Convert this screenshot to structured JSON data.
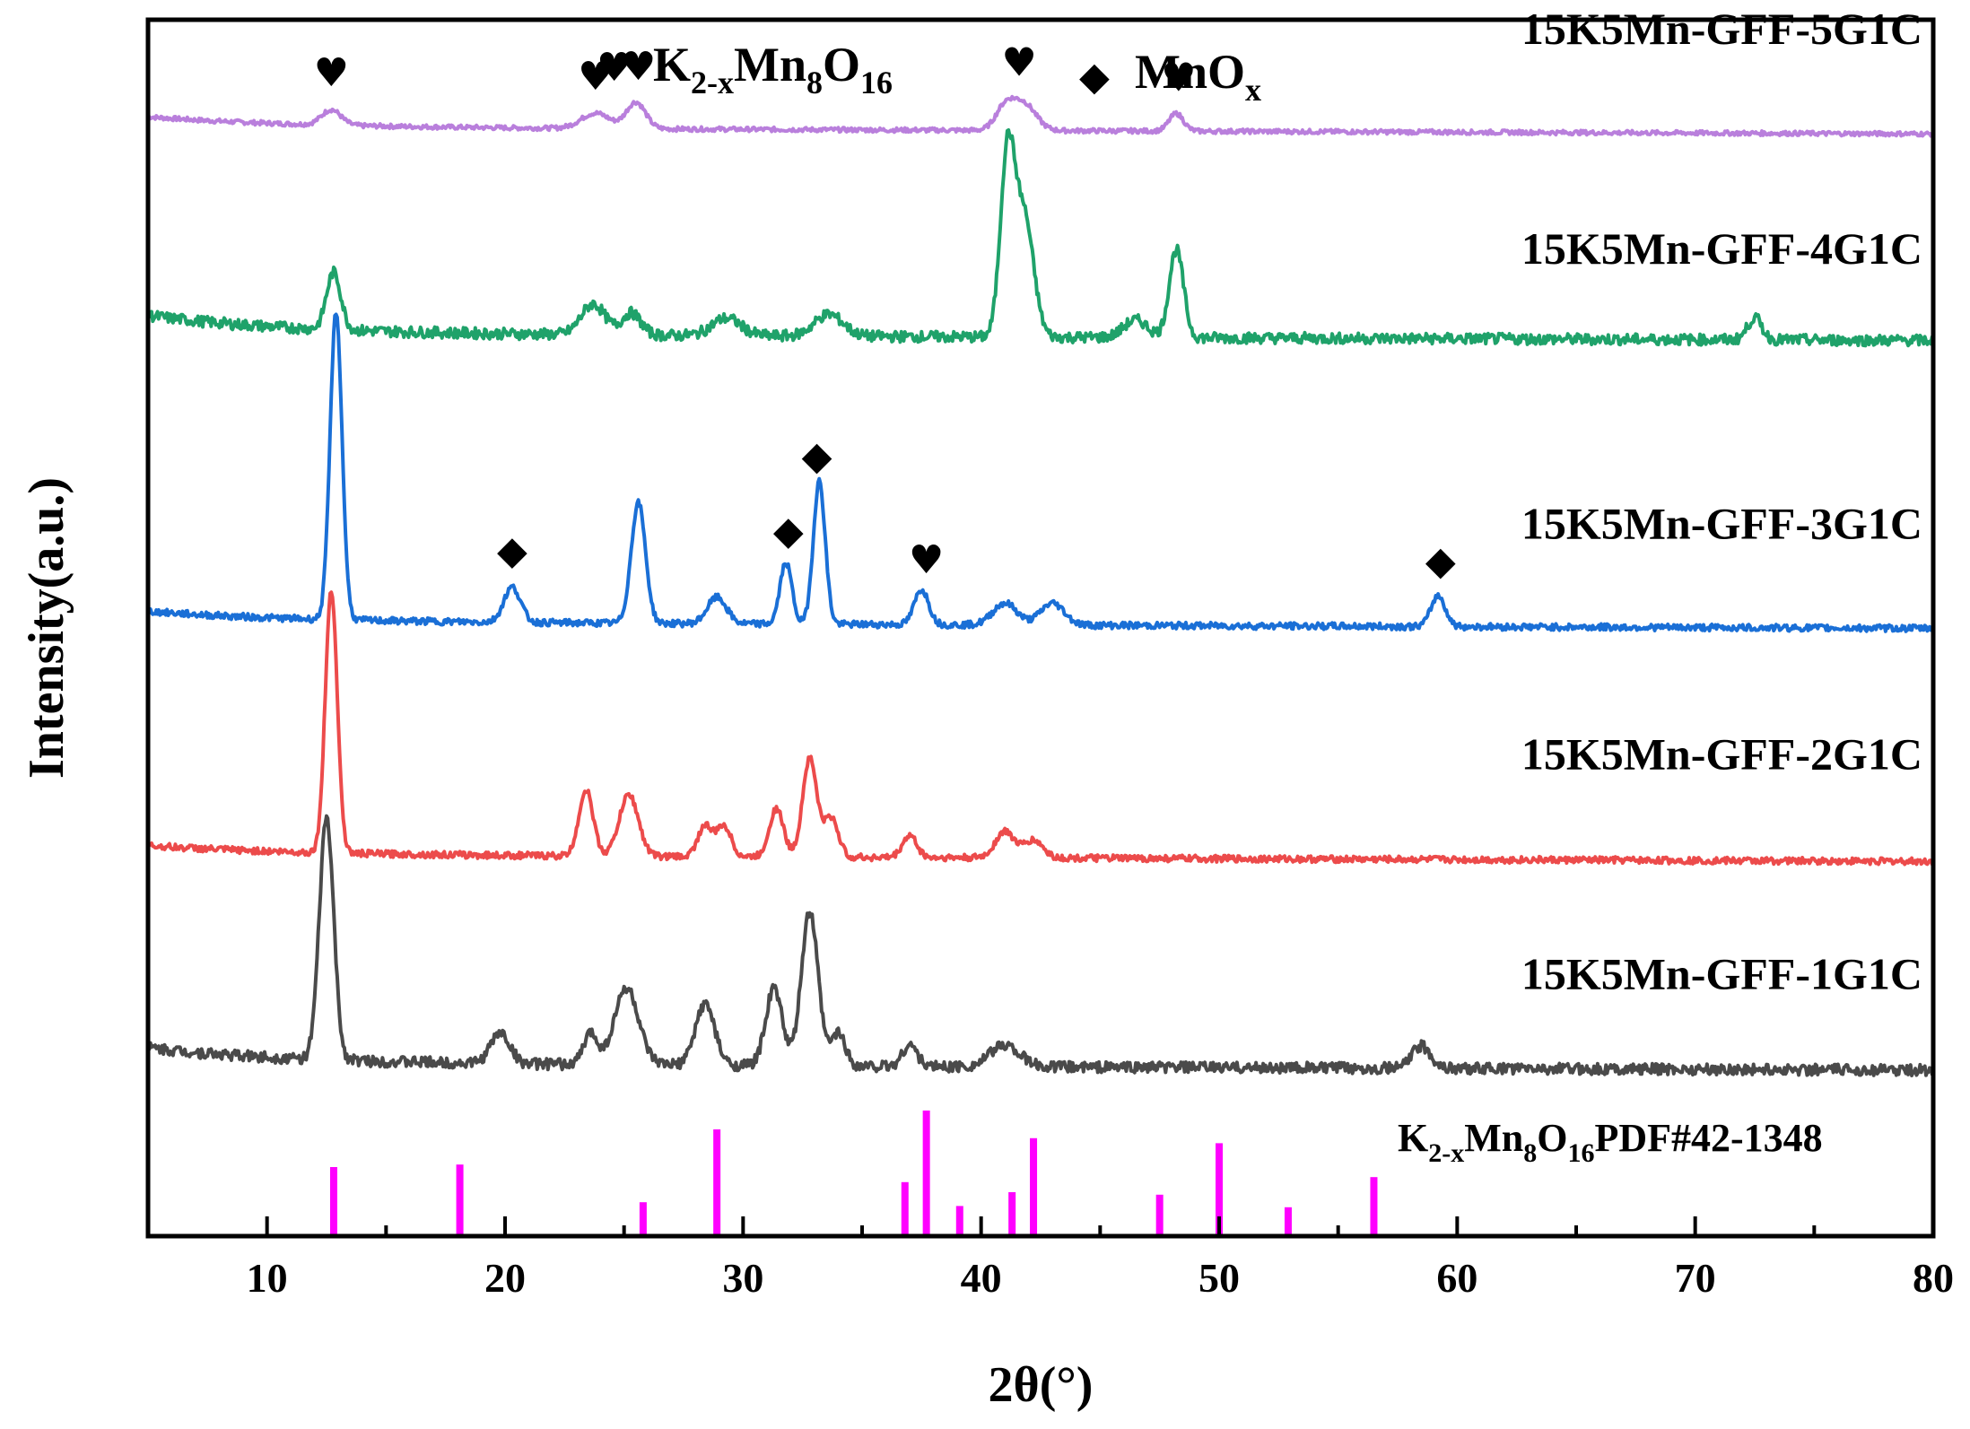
{
  "chart_data": {
    "type": "line",
    "xlabel": "2θ(°)",
    "ylabel": "Intensity(a.u.)",
    "xlim": [
      5,
      80
    ],
    "x_ticks": [
      10,
      20,
      30,
      40,
      50,
      60,
      70,
      80
    ],
    "x_minor_step": 5,
    "y_ticks_shown": false,
    "grid": false,
    "legend": {
      "placement": "top-center",
      "items": [
        {
          "symbol": "♥",
          "symbol_name": "heart-marker",
          "base": "K",
          "sub1": "2-x",
          "mid": "Mn",
          "sub2": "8",
          "tail": "O",
          "sub3": "16"
        },
        {
          "symbol": "◆",
          "symbol_name": "diamond-marker",
          "base": "MnO",
          "sub1": "x"
        }
      ]
    },
    "series": [
      {
        "name": "15K5Mn-GFF-5G1C",
        "color": "#b97fdc",
        "offset": 4.3,
        "baseline": 0.08,
        "noise": 0.02,
        "peaks": [
          [
            12.7,
            0.07,
            0.4
          ],
          [
            23.8,
            0.07,
            0.6
          ],
          [
            25.5,
            0.12,
            0.4
          ],
          [
            41.0,
            0.1,
            0.4
          ],
          [
            41.8,
            0.12,
            0.5
          ],
          [
            48.2,
            0.08,
            0.3
          ]
        ],
        "markers": [
          {
            "x": 12.7,
            "symbol": "♥"
          },
          {
            "x": 23.8,
            "symbol": "♥"
          },
          {
            "x": 25.6,
            "symbol": "♥"
          },
          {
            "x": 41.6,
            "symbol": "♥"
          },
          {
            "x": 48.3,
            "symbol": "♥"
          }
        ]
      },
      {
        "name": "15K5Mn-GFF-4G1C",
        "color": "#1fa26a",
        "offset": 3.3,
        "baseline": 0.14,
        "noise": 0.05,
        "peaks": [
          [
            12.8,
            0.26,
            0.3
          ],
          [
            23.7,
            0.14,
            0.5
          ],
          [
            25.3,
            0.1,
            0.4
          ],
          [
            29.3,
            0.08,
            0.6
          ],
          [
            33.6,
            0.1,
            0.6
          ],
          [
            41.1,
            0.8,
            0.3
          ],
          [
            41.8,
            0.55,
            0.4
          ],
          [
            46.5,
            0.08,
            0.5
          ],
          [
            48.2,
            0.4,
            0.3
          ],
          [
            72.5,
            0.1,
            0.3
          ]
        ],
        "markers": []
      },
      {
        "name": "15K5Mn-GFF-3G1C",
        "color": "#1a6fd6",
        "offset": 2.05,
        "baseline": 0.08,
        "noise": 0.03,
        "peaks": [
          [
            12.9,
            1.4,
            0.25
          ],
          [
            20.3,
            0.16,
            0.35
          ],
          [
            25.6,
            0.55,
            0.3
          ],
          [
            28.9,
            0.12,
            0.4
          ],
          [
            31.8,
            0.28,
            0.25
          ],
          [
            33.2,
            0.65,
            0.25
          ],
          [
            37.5,
            0.16,
            0.3
          ],
          [
            41.0,
            0.1,
            0.5
          ],
          [
            43.0,
            0.1,
            0.5
          ],
          [
            59.2,
            0.14,
            0.3
          ]
        ],
        "markers": [
          {
            "x": 20.3,
            "symbol": "◆"
          },
          {
            "x": 31.9,
            "symbol": "◆"
          },
          {
            "x": 33.1,
            "symbol": "◆"
          },
          {
            "x": 37.7,
            "symbol": "♥"
          },
          {
            "x": 59.3,
            "symbol": "◆"
          }
        ]
      },
      {
        "name": "15K5Mn-GFF-2G1C",
        "color": "#ec4b4b",
        "offset": 1.0,
        "baseline": 0.07,
        "noise": 0.03,
        "peaks": [
          [
            12.7,
            1.2,
            0.25
          ],
          [
            23.4,
            0.3,
            0.3
          ],
          [
            25.2,
            0.28,
            0.4
          ],
          [
            28.4,
            0.14,
            0.3
          ],
          [
            29.2,
            0.14,
            0.3
          ],
          [
            31.4,
            0.22,
            0.3
          ],
          [
            32.8,
            0.45,
            0.3
          ],
          [
            33.7,
            0.18,
            0.3
          ],
          [
            37.0,
            0.1,
            0.3
          ],
          [
            41.0,
            0.12,
            0.4
          ],
          [
            42.2,
            0.08,
            0.4
          ]
        ],
        "markers": []
      },
      {
        "name": "15K5Mn-GFF-1G1C",
        "color": "#4a4a4a",
        "offset": 0.0,
        "baseline": 0.12,
        "noise": 0.05,
        "peaks": [
          [
            12.5,
            1.1,
            0.3
          ],
          [
            19.8,
            0.14,
            0.4
          ],
          [
            23.6,
            0.14,
            0.3
          ],
          [
            25.1,
            0.35,
            0.5
          ],
          [
            28.4,
            0.28,
            0.4
          ],
          [
            31.3,
            0.35,
            0.35
          ],
          [
            32.8,
            0.7,
            0.35
          ],
          [
            34.0,
            0.15,
            0.3
          ],
          [
            37.0,
            0.1,
            0.3
          ],
          [
            41.0,
            0.1,
            0.6
          ],
          [
            58.5,
            0.1,
            0.4
          ]
        ],
        "markers": []
      }
    ],
    "reference": {
      "label_base": "K",
      "label_sub1": "2-x",
      "label_mid": "Mn",
      "label_sub2": "8",
      "label_tail": "O",
      "label_sub3": "16",
      "label_suffix": "PDF#42-1348",
      "color": "#ff00ff",
      "sticks": [
        {
          "x": 12.8,
          "value": 55
        },
        {
          "x": 18.1,
          "value": 57
        },
        {
          "x": 25.8,
          "value": 27
        },
        {
          "x": 28.9,
          "value": 85
        },
        {
          "x": 36.8,
          "value": 43
        },
        {
          "x": 37.7,
          "value": 100
        },
        {
          "x": 39.1,
          "value": 24
        },
        {
          "x": 41.3,
          "value": 35
        },
        {
          "x": 42.2,
          "value": 78
        },
        {
          "x": 47.5,
          "value": 33
        },
        {
          "x": 50.0,
          "value": 74
        },
        {
          "x": 52.9,
          "value": 23
        },
        {
          "x": 56.5,
          "value": 47
        }
      ]
    }
  }
}
